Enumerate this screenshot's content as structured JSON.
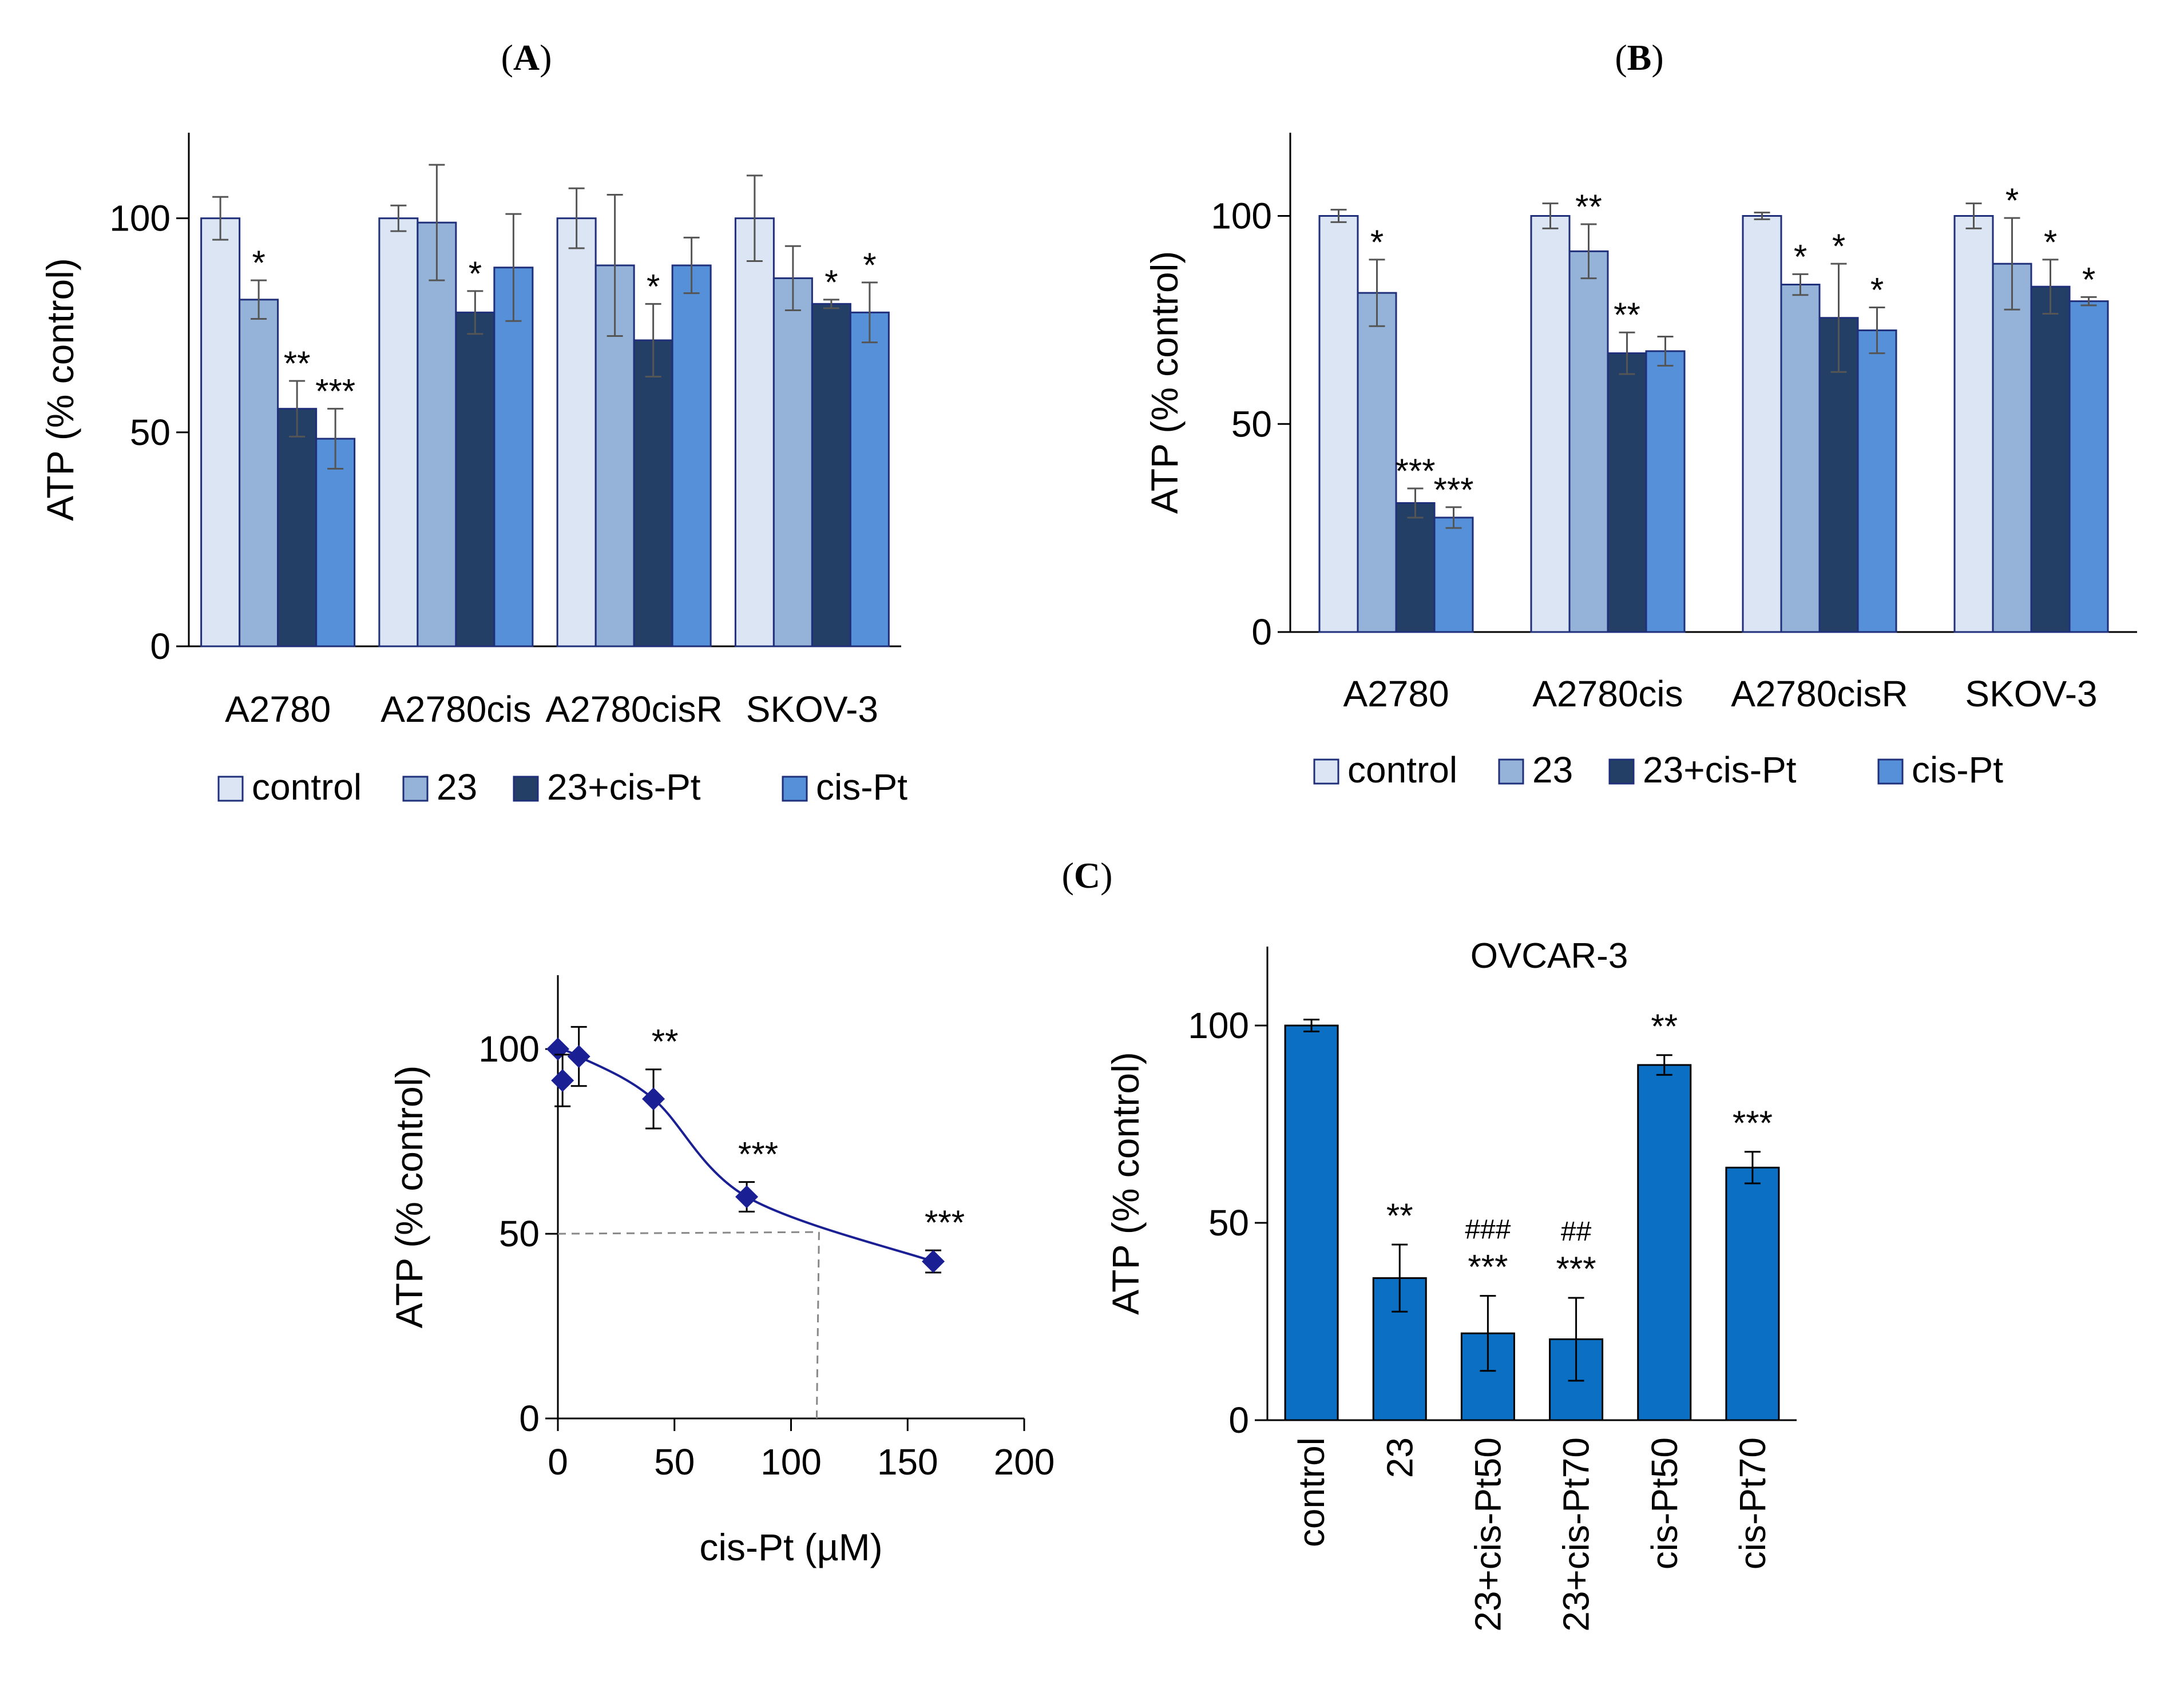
{
  "panel_labels": {
    "a": {
      "open": "(",
      "letter": "A",
      "close": ")"
    },
    "b": {
      "open": "(",
      "letter": "B",
      "close": ")"
    },
    "c": {
      "open": "(",
      "letter": "C",
      "close": ")"
    }
  },
  "colors": {
    "control": "#dbe5f4",
    "23": "#95b3d8",
    "23+cis-Pt": "#243f66",
    "cis-Pt": "#5590d9",
    "bar_edge": "#1f2f7a",
    "curve": "#1a1f94",
    "ovcar_bar": "#0b6fc4",
    "error": "#555555",
    "dashed": "#888888"
  },
  "chart_data": [
    {
      "id": "A",
      "type": "bar",
      "title": "",
      "ylabel": "ATP (% control)",
      "xlabel": "",
      "ylim": [
        0,
        120
      ],
      "yticks": [
        0,
        50,
        100
      ],
      "categories": [
        "A2780",
        "A2780cis",
        "A2780cisR",
        "SKOV-3"
      ],
      "series": [
        {
          "name": "control",
          "values": [
            100,
            100,
            100,
            100
          ],
          "errors": [
            5,
            3,
            7,
            10
          ],
          "labels": [
            "",
            "",
            "",
            ""
          ]
        },
        {
          "name": "23",
          "values": [
            81,
            99,
            89,
            86
          ],
          "errors": [
            4.5,
            13.5,
            16.5,
            7.5
          ],
          "labels": [
            "*",
            "",
            "",
            ""
          ]
        },
        {
          "name": "23+cis-Pt",
          "values": [
            55.5,
            78,
            71.5,
            80
          ],
          "errors": [
            6.5,
            5,
            8.5,
            1
          ],
          "labels": [
            "**",
            "*",
            "*",
            "*"
          ]
        },
        {
          "name": "cis-Pt",
          "values": [
            48.5,
            88.5,
            89,
            78
          ],
          "errors": [
            7,
            12.5,
            6.5,
            7
          ],
          "labels": [
            "***",
            "",
            "",
            "*"
          ]
        }
      ],
      "legend": [
        "control",
        "23",
        "23+cis-Pt",
        "cis-Pt"
      ]
    },
    {
      "id": "B",
      "type": "bar",
      "title": "",
      "ylabel": "ATP (% control)",
      "xlabel": "",
      "ylim": [
        0,
        120
      ],
      "yticks": [
        0,
        50,
        100
      ],
      "categories": [
        "A2780",
        "A2780cis",
        "A2780cisR",
        "SKOV-3"
      ],
      "series": [
        {
          "name": "control",
          "values": [
            100,
            100,
            100,
            100
          ],
          "errors": [
            1.5,
            3,
            0.8,
            3
          ],
          "labels": [
            "",
            "",
            "",
            ""
          ]
        },
        {
          "name": "23",
          "values": [
            81.5,
            91.5,
            83.5,
            88.5
          ],
          "errors": [
            8,
            6.5,
            2.5,
            11
          ],
          "labels": [
            "*",
            "**",
            "*",
            "*"
          ]
        },
        {
          "name": "23+cis-Pt",
          "values": [
            31,
            67,
            75.5,
            83
          ],
          "errors": [
            3.5,
            5,
            13,
            6.5
          ],
          "labels": [
            "***",
            "**",
            "*",
            "*"
          ]
        },
        {
          "name": "cis-Pt",
          "values": [
            27.5,
            67.5,
            72.5,
            79.5
          ],
          "errors": [
            2.5,
            3.5,
            5.5,
            1
          ],
          "labels": [
            "***",
            "",
            "*",
            "*"
          ]
        }
      ],
      "legend": [
        "control",
        "23",
        "23+cis-Pt",
        "cis-Pt"
      ]
    },
    {
      "id": "C-left",
      "type": "scatter",
      "title": "",
      "xlabel": "cis-Pt (µM)",
      "ylabel": "ATP (% control)",
      "xlim": [
        0,
        200
      ],
      "ylim": [
        0,
        120
      ],
      "xticks": [
        0,
        50,
        100,
        150,
        200
      ],
      "yticks": [
        0,
        50,
        100
      ],
      "points": [
        {
          "x": 0,
          "y": 100,
          "err": 0,
          "label": ""
        },
        {
          "x": 2,
          "y": 91.5,
          "err": 7,
          "label": ""
        },
        {
          "x": 9,
          "y": 98,
          "err": 8,
          "label": ""
        },
        {
          "x": 41,
          "y": 86.5,
          "err": 8,
          "label": "**"
        },
        {
          "x": 81,
          "y": 60,
          "err": 4,
          "label": "***"
        },
        {
          "x": 161,
          "y": 42.5,
          "err": 3,
          "label": "***"
        }
      ],
      "ic50_line": {
        "x": 112,
        "y": 50
      }
    },
    {
      "id": "C-right",
      "type": "bar",
      "title": "OVCAR-3",
      "xlabel": "",
      "ylabel": "ATP (% control)",
      "ylim": [
        0,
        120
      ],
      "yticks": [
        0,
        50,
        100
      ],
      "categories": [
        "control",
        "23",
        "23+cis-Pt50",
        "23+cis-Pt70",
        "cis-Pt50",
        "cis-Pt70"
      ],
      "values": [
        100,
        36,
        22,
        20.5,
        90,
        64
      ],
      "errors": [
        1.5,
        8.5,
        9.5,
        10.5,
        2.5,
        4
      ],
      "labels": [
        "",
        "**",
        "***",
        "***",
        "**",
        "***"
      ],
      "hash_labels": [
        "",
        "",
        "###",
        "##",
        "",
        ""
      ]
    }
  ]
}
